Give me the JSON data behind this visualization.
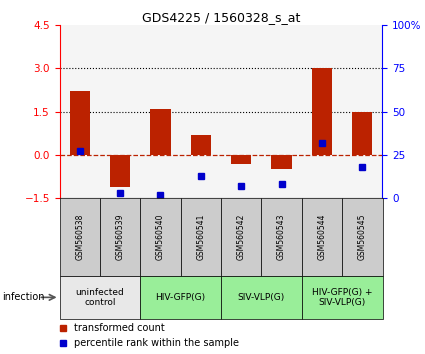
{
  "title": "GDS4225 / 1560328_s_at",
  "samples": [
    "GSM560538",
    "GSM560539",
    "GSM560540",
    "GSM560541",
    "GSM560542",
    "GSM560543",
    "GSM560544",
    "GSM560545"
  ],
  "transformed_counts": [
    2.2,
    -1.1,
    1.6,
    0.7,
    -0.3,
    -0.5,
    3.0,
    1.5
  ],
  "percentile_ranks": [
    27,
    3,
    2,
    13,
    7,
    8,
    32,
    18
  ],
  "ylim": [
    -1.5,
    4.5
  ],
  "y_ticks_left": [
    -1.5,
    0,
    1.5,
    3,
    4.5
  ],
  "y_ticks_right": [
    0,
    25,
    50,
    75,
    100
  ],
  "dotted_lines": [
    1.5,
    3.0
  ],
  "dashed_line": 0.0,
  "bar_color": "#bb2200",
  "dot_color": "#0000cc",
  "bar_width": 0.5,
  "groups": [
    {
      "label": "uninfected\ncontrol",
      "start": 0,
      "end": 2,
      "color": "#e8e8e8"
    },
    {
      "label": "HIV-GFP(G)",
      "start": 2,
      "end": 4,
      "color": "#99ee99"
    },
    {
      "label": "SIV-VLP(G)",
      "start": 4,
      "end": 6,
      "color": "#99ee99"
    },
    {
      "label": "HIV-GFP(G) +\nSIV-VLP(G)",
      "start": 6,
      "end": 8,
      "color": "#99ee99"
    }
  ],
  "tick_bg_color": "#cccccc",
  "legend_red_label": "transformed count",
  "legend_blue_label": "percentile rank within the sample",
  "infection_label": "infection",
  "percentile_scale": 100
}
